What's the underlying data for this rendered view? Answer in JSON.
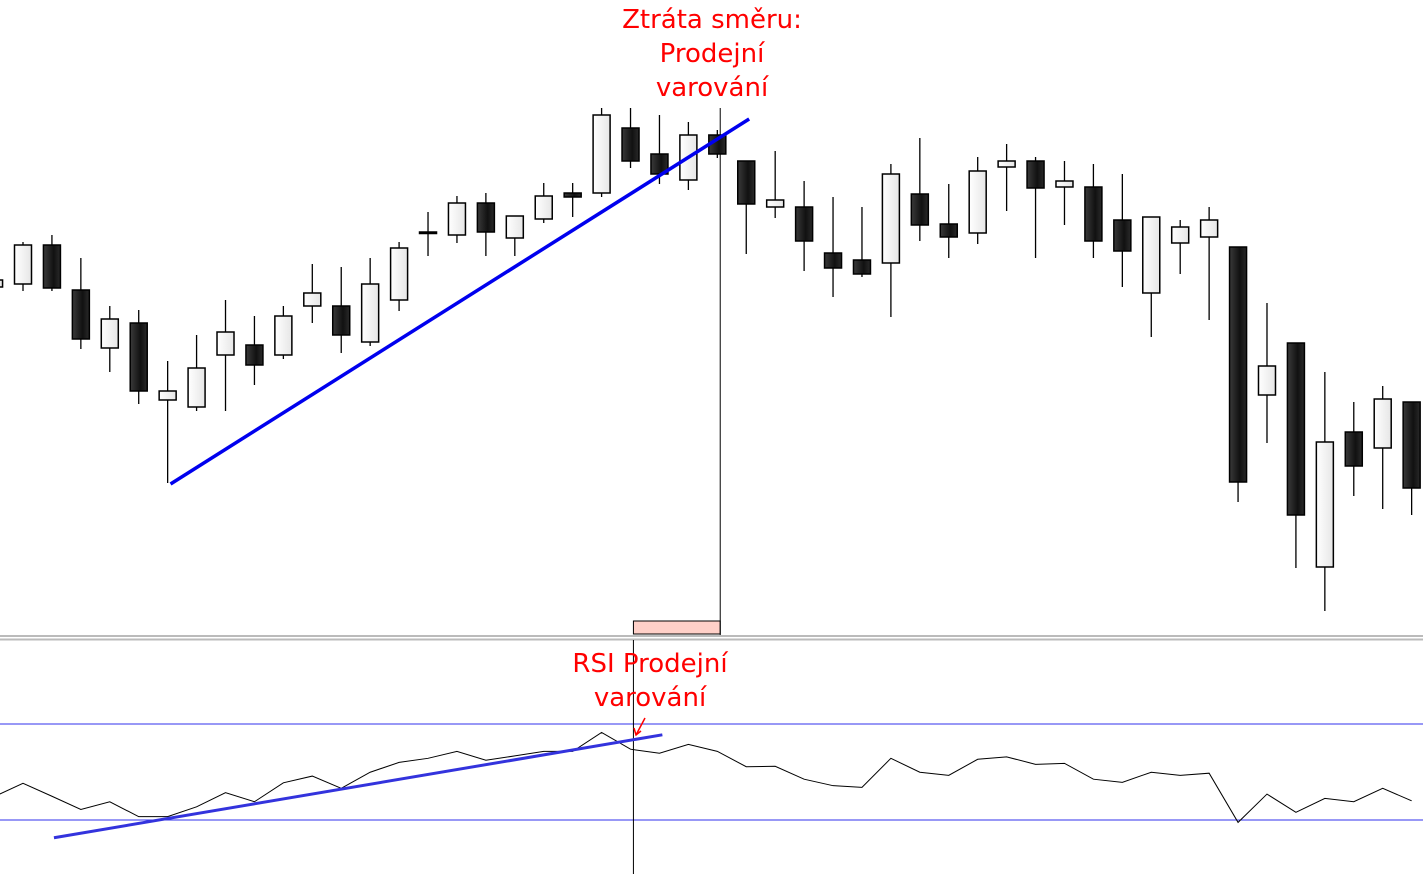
{
  "chart_data": [
    {
      "type": "candlestick",
      "title": "",
      "grid": false,
      "colors": {
        "up_body": "#f4f4f4",
        "down_body": "#1e1e1e",
        "wick": "#000000",
        "trendline": "#0000ee",
        "annotation": "#ff0000",
        "marker_box": "#ffd0c8"
      },
      "fields": [
        "open",
        "high",
        "low",
        "close"
      ],
      "candles": [
        [
          41.3,
          42.2,
          41.1,
          42.0
        ],
        [
          41.6,
          45.8,
          40.9,
          45.5
        ],
        [
          45.5,
          46.5,
          40.9,
          41.2
        ],
        [
          41.0,
          44.2,
          35.1,
          36.1
        ],
        [
          35.2,
          39.4,
          32.8,
          38.1
        ],
        [
          37.7,
          39.0,
          29.6,
          30.9
        ],
        [
          30.0,
          33.9,
          21.7,
          30.9
        ],
        [
          29.3,
          36.5,
          28.9,
          33.2
        ],
        [
          34.5,
          40.0,
          28.9,
          36.8
        ],
        [
          35.5,
          38.4,
          31.5,
          33.5
        ],
        [
          34.5,
          39.4,
          34.1,
          38.4
        ],
        [
          39.4,
          43.6,
          37.7,
          40.7
        ],
        [
          39.4,
          43.3,
          34.7,
          36.5
        ],
        [
          35.8,
          44.2,
          35.4,
          41.6
        ],
        [
          40.0,
          45.8,
          38.9,
          45.2
        ],
        [
          46.8,
          48.8,
          44.4,
          46.8
        ],
        [
          46.5,
          50.4,
          45.7,
          49.7
        ],
        [
          49.7,
          50.7,
          44.4,
          46.8
        ],
        [
          46.2,
          48.4,
          44.4,
          48.4
        ],
        [
          48.1,
          51.7,
          47.7,
          50.4
        ],
        [
          50.7,
          51.7,
          48.3,
          50.3
        ],
        [
          50.7,
          59.2,
          50.3,
          58.5
        ],
        [
          57.2,
          59.2,
          53.2,
          53.9
        ],
        [
          54.6,
          58.5,
          51.6,
          52.6
        ],
        [
          52.0,
          57.8,
          51.0,
          56.5
        ],
        [
          56.5,
          57.0,
          54.2,
          54.6
        ],
        [
          53.9,
          53.9,
          44.6,
          49.6
        ],
        [
          49.3,
          54.9,
          48.2,
          50.0
        ],
        [
          49.3,
          51.9,
          42.9,
          45.9
        ],
        [
          44.7,
          50.3,
          40.3,
          43.2
        ],
        [
          44.0,
          49.3,
          42.3,
          42.6
        ],
        [
          43.7,
          53.6,
          38.3,
          52.6
        ],
        [
          50.6,
          56.2,
          45.9,
          47.5
        ],
        [
          47.6,
          51.6,
          44.2,
          46.3
        ],
        [
          46.7,
          54.3,
          45.6,
          52.9
        ],
        [
          53.3,
          55.6,
          48.9,
          53.9
        ],
        [
          53.9,
          54.3,
          44.2,
          51.2
        ],
        [
          51.3,
          53.9,
          47.5,
          51.9
        ],
        [
          51.3,
          53.6,
          44.2,
          45.9
        ],
        [
          48.0,
          52.6,
          41.3,
          44.9
        ],
        [
          40.7,
          48.3,
          36.3,
          48.3
        ],
        [
          45.7,
          48.0,
          42.6,
          47.3
        ],
        [
          46.3,
          49.3,
          38.0,
          48.0
        ],
        [
          45.3,
          45.3,
          19.8,
          21.8
        ],
        [
          30.5,
          39.7,
          25.7,
          33.4
        ],
        [
          35.7,
          35.7,
          13.2,
          18.5
        ],
        [
          13.3,
          32.8,
          8.9,
          25.8
        ],
        [
          26.8,
          29.8,
          20.4,
          23.4
        ],
        [
          25.2,
          31.4,
          19.1,
          30.1
        ],
        [
          29.8,
          29.8,
          18.5,
          21.2
        ]
      ],
      "trendline": {
        "from": {
          "bar": 6.1,
          "price": 21.6
        },
        "to": {
          "bar": 26.1,
          "price": 58.1
        }
      },
      "signal_bar": 25.1,
      "annotation": {
        "lines": [
          "Ztráta směru:",
          "Prodejní",
          "varování"
        ]
      }
    },
    {
      "type": "line",
      "title": "",
      "grid": false,
      "levels": [
        70,
        30
      ],
      "ylim": [
        14,
        86
      ],
      "series": [
        {
          "values": [
            39.7,
            45.3,
            39.9,
            34.4,
            37.6,
            31.4,
            31.4,
            35.5,
            41.4,
            37.6,
            45.5,
            48.3,
            43.2,
            49.9,
            54.0,
            55.7,
            58.6,
            54.9,
            56.7,
            58.6,
            58.6,
            66.5,
            59.5,
            57.8,
            61.5,
            58.6,
            52.2,
            52.4,
            47.0,
            44.3,
            43.6,
            55.7,
            49.9,
            48.6,
            55.3,
            56.3,
            53.2,
            53.6,
            47.0,
            45.7,
            49.9,
            48.6,
            49.5,
            29.0,
            40.8,
            33.2,
            39.0,
            37.6,
            43.2,
            38.0
          ]
        }
      ],
      "trendline": {
        "from": {
          "bar": 2.07,
          "value": 22.6
        },
        "to": {
          "bar": 23.1,
          "value": 65.5
        }
      },
      "signal_bar": 22.1,
      "annotation": {
        "lines": [
          "RSI Prodejní",
          "varování"
        ]
      }
    }
  ]
}
